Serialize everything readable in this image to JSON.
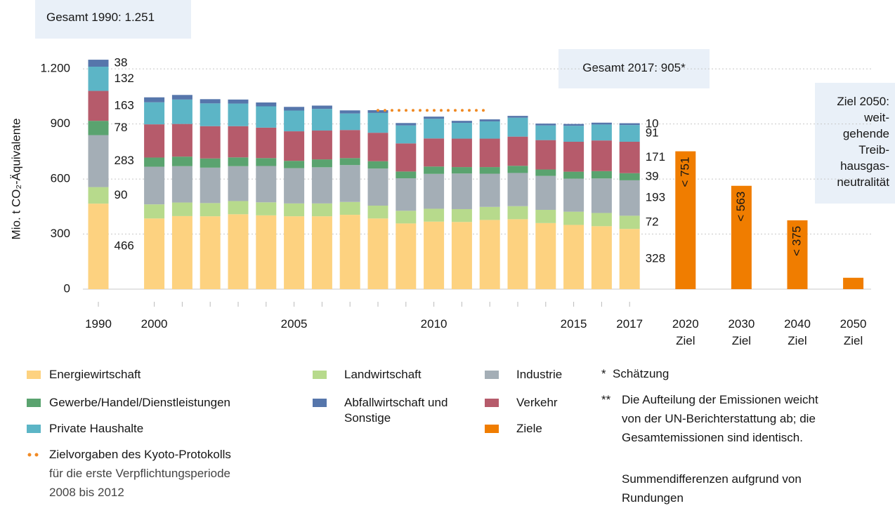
{
  "chart_data": {
    "type": "bar",
    "stacked": true,
    "y_label": "Mio. t CO₂-Äquivalente",
    "total_1990": "Gesamt 1990: 1.251",
    "total_2017": "Gesamt 2017: 905*",
    "goal_2050": [
      "Ziel 2050:",
      "weit-",
      "gehende",
      "Treib-",
      "hausgas-",
      "neutralität"
    ],
    "categories": [
      "1990",
      "2000",
      null,
      null,
      null,
      null,
      "2005",
      null,
      null,
      null,
      null,
      "2010",
      null,
      null,
      null,
      null,
      "2015",
      null,
      "2017",
      "2020 Ziel",
      "2030 Ziel",
      "2040 Ziel",
      "2050 Ziel"
    ],
    "labeled_categories": [
      0,
      18
    ],
    "ylim": [
      0,
      1300
    ],
    "yticks": [
      0,
      300,
      600,
      900,
      {
        "value": 1200,
        "label": "1.200"
      }
    ],
    "grid": true,
    "series": [
      {
        "name": "Energiewirtschaft",
        "color": "#fdd280",
        "values": [
          466,
          385,
          398,
          397,
          408,
          402,
          397,
          397,
          405,
          385,
          358,
          368,
          366,
          377,
          381,
          360,
          350,
          343,
          328,
          null,
          null,
          null,
          null
        ]
      },
      {
        "name": "Landwirtschaft",
        "color": "#b7da8c",
        "values": [
          90,
          77,
          74,
          72,
          72,
          71,
          70,
          70,
          70,
          70,
          69,
          70,
          70,
          71,
          71,
          72,
          72,
          72,
          72,
          null,
          null,
          null,
          null
        ]
      },
      {
        "name": "Industrie",
        "color": "#a4aeb6",
        "values": [
          283,
          205,
          198,
          193,
          190,
          198,
          192,
          197,
          201,
          202,
          177,
          190,
          194,
          181,
          181,
          185,
          180,
          188,
          193,
          null,
          null,
          null,
          null
        ]
      },
      {
        "name": "Gewerbe/Handel/Dienstleistungen",
        "color": "#5aa36f",
        "values": [
          78,
          50,
          52,
          50,
          48,
          43,
          40,
          43,
          38,
          40,
          37,
          40,
          35,
          36,
          39,
          35,
          38,
          40,
          39,
          null,
          null,
          null,
          null
        ]
      },
      {
        "name": "Verkehr",
        "color": "#b65b6b",
        "values": [
          163,
          181,
          178,
          176,
          170,
          166,
          161,
          157,
          153,
          155,
          153,
          153,
          155,
          155,
          159,
          160,
          163,
          167,
          171,
          null,
          null,
          null,
          null
        ]
      },
      {
        "name": "Private Haushalte",
        "color": "#5cb5c6",
        "values": [
          132,
          120,
          133,
          124,
          123,
          116,
          113,
          118,
          90,
          108,
          98,
          107,
          86,
          94,
          103,
          80,
          87,
          87,
          91,
          null,
          null,
          null,
          null
        ]
      },
      {
        "name": "Abfallwirtschaft und Sonstige",
        "color": "#5676ab",
        "values": [
          38,
          27,
          25,
          23,
          22,
          21,
          20,
          18,
          17,
          15,
          13,
          12,
          11,
          11,
          10,
          10,
          10,
          10,
          10,
          null,
          null,
          null,
          null
        ]
      },
      {
        "name": "Ziele",
        "color": "#f07d00",
        "values": [
          null,
          null,
          null,
          null,
          null,
          null,
          null,
          null,
          null,
          null,
          null,
          null,
          null,
          null,
          null,
          null,
          null,
          null,
          null,
          751,
          563,
          375,
          62
        ],
        "value_labels": [
          null,
          null,
          null,
          null,
          null,
          null,
          null,
          null,
          null,
          null,
          null,
          null,
          null,
          null,
          null,
          null,
          null,
          null,
          null,
          "< 751",
          "< 563",
          "< 375",
          null
        ]
      }
    ],
    "target_line": {
      "name": [
        "Zielvorgaben des Kyoto-Protokolls",
        "für die erste Verpflichtungsperiode",
        "2008 bis 2012"
      ],
      "color": "#f08a24",
      "values": [
        null,
        null,
        null,
        null,
        null,
        null,
        null,
        null,
        null,
        974,
        974,
        974,
        974,
        974,
        null,
        null,
        null,
        null,
        null,
        null,
        null,
        null,
        null
      ]
    },
    "footnotes": [
      {
        "mark": "*",
        "lines": [
          "Schätzung"
        ]
      },
      {
        "mark": "**",
        "lines": [
          "Die Aufteilung der Emissionen weicht",
          "von der UN-Berichterstattung ab; die",
          "Gesamtemissionen sind identisch."
        ]
      },
      {
        "lines": [
          "Summendifferenzen aufgrund von",
          "Rundungen"
        ]
      }
    ]
  }
}
